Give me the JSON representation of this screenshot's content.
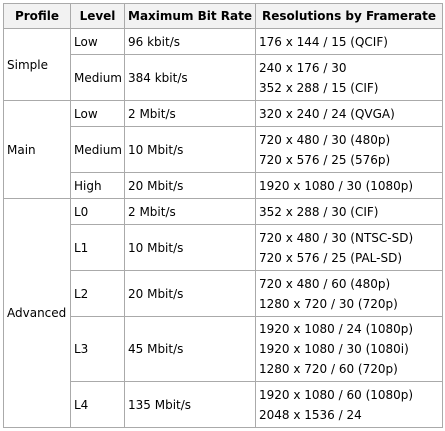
{
  "headers": [
    "Profile",
    "Level",
    "Maximum Bit Rate",
    "Resolutions by Framerate"
  ],
  "rows": [
    {
      "profile": "Simple",
      "level": "Low",
      "bitrate": "96 kbit/s",
      "res": [
        "176 x 144 / 15 (QCIF)"
      ]
    },
    {
      "level": "Medium",
      "bitrate": "384 kbit/s",
      "res": [
        "240 x 176 / 30",
        "352 x 288 / 15 (CIF)"
      ]
    },
    {
      "profile": "Main",
      "level": "Low",
      "bitrate": "2 Mbit/s",
      "res": [
        "320 x 240 / 24 (QVGA)"
      ]
    },
    {
      "level": "Medium",
      "bitrate": "10 Mbit/s",
      "res": [
        "720 x 480 / 30 (480p)",
        "720 x 576 / 25 (576p)"
      ]
    },
    {
      "level": "High",
      "bitrate": "20 Mbit/s",
      "res": [
        "1920 x 1080 / 30 (1080p)"
      ]
    },
    {
      "profile": "Advanced",
      "level": "L0",
      "bitrate": "2 Mbit/s",
      "res": [
        "352 x 288 / 30 (CIF)"
      ]
    },
    {
      "level": "L1",
      "bitrate": "10 Mbit/s",
      "res": [
        "720 x 480 / 30 (NTSC-SD)",
        "720 x 576 / 25 (PAL-SD)"
      ]
    },
    {
      "level": "L2",
      "bitrate": "20 Mbit/s",
      "res": [
        "720 x 480 / 60 (480p)",
        "1280 x 720 / 30 (720p)"
      ]
    },
    {
      "level": "L3",
      "bitrate": "45 Mbit/s",
      "res": [
        "1920 x 1080 / 24 (1080p)",
        "1920 x 1080 / 30 (1080i)",
        "1280 x 720 / 60 (720p)"
      ]
    },
    {
      "level": "L4",
      "bitrate": "135 Mbit/s",
      "res": [
        "1920 x 1080 / 60 (1080p)",
        "2048 x 1536 / 24"
      ]
    }
  ]
}
